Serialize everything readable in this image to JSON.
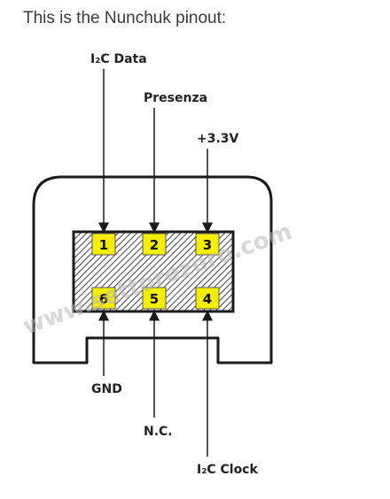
{
  "intro_text": "This is the Nunchuk pinout:",
  "labels": {
    "i2c_data": "I₂C Data",
    "presenza": "Presenza",
    "vcc": "+3.3V",
    "gnd": "GND",
    "nc": "N.C.",
    "i2c_clock": "I₂C Clock"
  },
  "pins": {
    "p1": "1",
    "p2": "2",
    "p3": "3",
    "p4": "4",
    "p5": "5",
    "p6": "6"
  },
  "watermark": "www.settorezero.com",
  "colors": {
    "pin_fill": "#f6ee00",
    "outline": "#1a1a1a"
  }
}
